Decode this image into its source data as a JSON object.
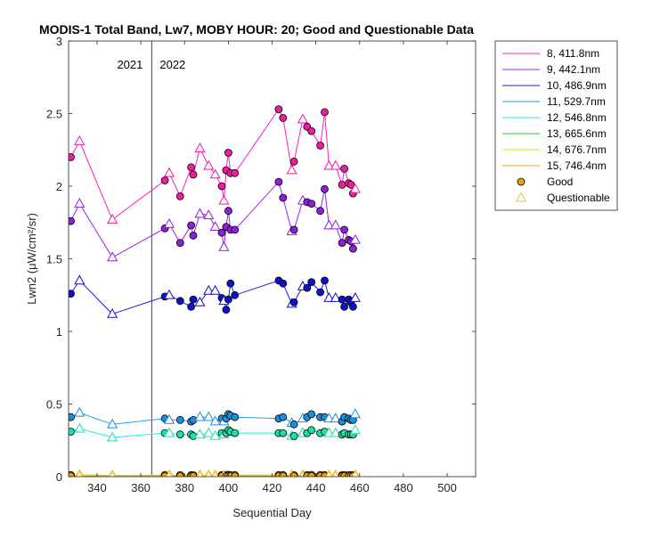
{
  "chart_data": {
    "type": "line",
    "title": "MODIS-1 Total Band, Lw7, MOBY HOUR: 20;  Good and Questionable Data",
    "xlabel": "Sequential Day",
    "ylabel": "Lwn2 (μW/cm²/sr)",
    "xlim": [
      327,
      513
    ],
    "ylim": [
      0,
      3
    ],
    "xticks": [
      340,
      360,
      380,
      400,
      420,
      440,
      460,
      480,
      500
    ],
    "yticks": [
      0,
      0.5,
      1,
      1.5,
      2,
      2.5,
      3
    ],
    "grid": false,
    "legend_position": "outside-top-right",
    "year_divider": {
      "x": 365,
      "left_label": "2021",
      "right_label": "2022"
    },
    "x": [
      328,
      332,
      347,
      371,
      373,
      378,
      383,
      384,
      387,
      391,
      394,
      397,
      398,
      399,
      400,
      401,
      403,
      423,
      425,
      429,
      430,
      434,
      436,
      438,
      442,
      444,
      446,
      449,
      452,
      453,
      455,
      456,
      457,
      458
    ],
    "quality": [
      "good",
      "questionable",
      "questionable",
      "good",
      "questionable",
      "good",
      "good",
      "good",
      "questionable",
      "questionable",
      "questionable",
      "good",
      "questionable",
      "good",
      "good",
      "good",
      "good",
      "good",
      "good",
      "questionable",
      "good",
      "questionable",
      "good",
      "good",
      "good",
      "good",
      "questionable",
      "questionable",
      "good",
      "good",
      "good",
      "good",
      "good",
      "questionable"
    ],
    "series": [
      {
        "name": "8, 411.8nm",
        "color": "#ff1fbf",
        "marker_color": "#ee1e9e",
        "values": [
          2.2,
          2.31,
          1.77,
          2.04,
          2.09,
          1.93,
          2.13,
          2.08,
          2.26,
          2.14,
          2.08,
          2.0,
          1.9,
          2.11,
          2.23,
          2.09,
          2.09,
          2.53,
          2.47,
          2.11,
          2.17,
          2.46,
          2.41,
          2.38,
          2.28,
          2.51,
          2.14,
          2.14,
          2.01,
          2.12,
          2.02,
          2.01,
          1.95,
          1.98
        ]
      },
      {
        "name": "9, 442.1nm",
        "color": "#9f1fef",
        "marker_color": "#8e1fdb",
        "values": [
          1.76,
          1.88,
          1.51,
          1.71,
          1.74,
          1.61,
          1.73,
          1.66,
          1.81,
          1.8,
          1.72,
          1.68,
          1.58,
          1.72,
          1.83,
          1.7,
          1.7,
          2.03,
          1.92,
          1.69,
          1.7,
          1.9,
          1.89,
          1.88,
          1.83,
          1.98,
          1.73,
          1.73,
          1.61,
          1.7,
          1.63,
          1.62,
          1.57,
          1.63
        ]
      },
      {
        "name": "10, 486.9nm",
        "color": "#1f1fcf",
        "marker_color": "#1010cc",
        "values": [
          1.26,
          1.35,
          1.12,
          1.24,
          1.25,
          1.21,
          1.17,
          1.22,
          1.2,
          1.28,
          1.28,
          1.23,
          1.21,
          1.15,
          1.22,
          1.33,
          1.25,
          1.35,
          1.33,
          1.19,
          1.2,
          1.31,
          1.3,
          1.34,
          1.27,
          1.35,
          1.23,
          1.23,
          1.22,
          1.17,
          1.22,
          1.2,
          1.17,
          1.23
        ]
      },
      {
        "name": "11, 529.7nm",
        "color": "#1f9fef",
        "marker_color": "#1c8edb",
        "values": [
          0.41,
          0.44,
          0.36,
          0.4,
          0.39,
          0.39,
          0.38,
          0.39,
          0.41,
          0.41,
          0.38,
          0.4,
          0.38,
          0.4,
          0.43,
          0.42,
          0.41,
          0.4,
          0.41,
          0.37,
          0.36,
          0.4,
          0.41,
          0.43,
          0.41,
          0.41,
          0.4,
          0.4,
          0.38,
          0.41,
          0.4,
          0.39,
          0.39,
          0.43
        ]
      },
      {
        "name": "12, 546.8nm",
        "color": "#1fefef",
        "marker_color": "#1fdfa8",
        "values": [
          0.31,
          0.33,
          0.27,
          0.3,
          0.3,
          0.29,
          0.29,
          0.28,
          0.29,
          0.3,
          0.28,
          0.3,
          0.29,
          0.3,
          0.32,
          0.31,
          0.3,
          0.3,
          0.3,
          0.28,
          0.28,
          0.3,
          0.3,
          0.32,
          0.3,
          0.31,
          0.3,
          0.3,
          0.29,
          0.3,
          0.29,
          0.29,
          0.29,
          0.32
        ]
      },
      {
        "name": "13, 665.6nm",
        "color": "#1fcf1f",
        "marker_color": "#1fcf1f",
        "values": [
          0.01,
          0.012,
          0.008,
          0.01,
          0.01,
          0.009,
          0.009,
          0.009,
          0.01,
          0.01,
          0.009,
          0.01,
          0.009,
          0.01,
          0.011,
          0.01,
          0.01,
          0.01,
          0.01,
          0.009,
          0.009,
          0.01,
          0.01,
          0.011,
          0.01,
          0.01,
          0.01,
          0.01,
          0.009,
          0.01,
          0.009,
          0.009,
          0.009,
          0.011
        ]
      },
      {
        "name": "14, 676.7nm",
        "color": "#bfef1f",
        "marker_color": "#bfef1f",
        "values": [
          0.011,
          0.013,
          0.009,
          0.011,
          0.011,
          0.01,
          0.01,
          0.01,
          0.011,
          0.011,
          0.01,
          0.011,
          0.01,
          0.011,
          0.012,
          0.011,
          0.011,
          0.011,
          0.011,
          0.01,
          0.01,
          0.011,
          0.011,
          0.012,
          0.011,
          0.011,
          0.011,
          0.011,
          0.01,
          0.011,
          0.01,
          0.01,
          0.01,
          0.012
        ]
      },
      {
        "name": "15, 746.4nm",
        "color": "#ef9f1f",
        "marker_color": "#ef9f1f",
        "values": [
          0.003,
          0.004,
          0.002,
          0.003,
          0.003,
          0.003,
          0.003,
          0.003,
          0.003,
          0.003,
          0.003,
          0.003,
          0.003,
          0.003,
          0.004,
          0.003,
          0.003,
          0.003,
          0.003,
          0.003,
          0.003,
          0.003,
          0.003,
          0.004,
          0.003,
          0.003,
          0.003,
          0.003,
          0.003,
          0.003,
          0.003,
          0.003,
          0.003,
          0.004
        ]
      }
    ],
    "marker_legend": [
      {
        "name": "Good",
        "marker": "circle",
        "color": "#f0a010"
      },
      {
        "name": "Questionable",
        "marker": "triangle",
        "color": "#f0a010"
      }
    ]
  }
}
